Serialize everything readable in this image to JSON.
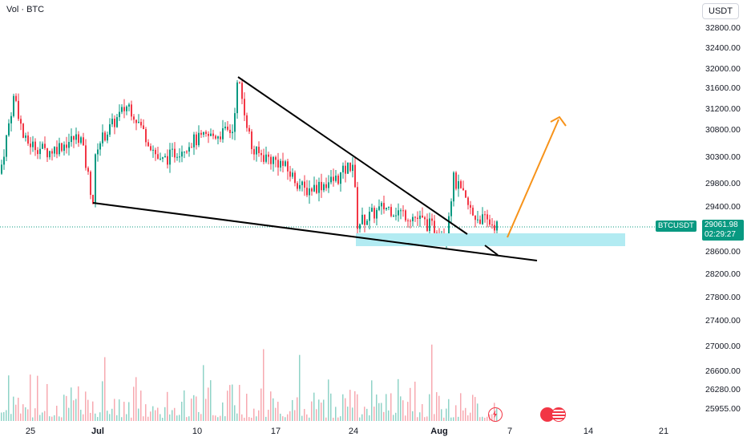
{
  "header": {
    "volume_label": "Vol · BTC"
  },
  "currency_button": "USDT",
  "price_axis": [
    "32800.00",
    "32400.00",
    "32000.00",
    "31600.00",
    "31200.00",
    "30800.00",
    "30300.00",
    "29800.00",
    "29400.00",
    "28600.00",
    "28200.00",
    "27800.00",
    "27400.00",
    "27000.00",
    "26600.00",
    "26280.00",
    "25955.00"
  ],
  "time_axis": [
    {
      "label": "25",
      "bold": false
    },
    {
      "label": "Jul",
      "bold": true
    },
    {
      "label": "10",
      "bold": false
    },
    {
      "label": "17",
      "bold": false
    },
    {
      "label": "24",
      "bold": false
    },
    {
      "label": "Aug",
      "bold": true
    },
    {
      "label": "7",
      "bold": false
    },
    {
      "label": "14",
      "bold": false
    },
    {
      "label": "21",
      "bold": false
    }
  ],
  "symbol_badge": "BTCUSDT",
  "last_price": "29061.98",
  "countdown": "02:29:27",
  "colors": {
    "up": "#089981",
    "down": "#f23645",
    "zone": "#b2ebf2",
    "arrow": "#f7931a",
    "trendline": "#000000"
  },
  "chart_data": {
    "type": "candlestick",
    "symbol": "BTCUSDT",
    "price_range": [
      25955,
      32800
    ],
    "last_price": 29061.98,
    "key_points": [
      {
        "date": "Jul 1",
        "price": 29500
      },
      {
        "date": "Jul 14",
        "price": 31800
      },
      {
        "date": "Jul 24",
        "price": 30300
      },
      {
        "date": "Aug 1",
        "price": 29800
      },
      {
        "date": "Aug 5",
        "price": 29060
      }
    ],
    "annotations": [
      {
        "type": "support-zone",
        "price_range": [
          28850,
          29020
        ]
      },
      {
        "type": "descending-trendline",
        "from": {
          "date": "Jul 14",
          "price": 31850
        },
        "to": {
          "date": "Aug 2",
          "price": 28990
        }
      },
      {
        "type": "support-trendline",
        "from": {
          "date": "Jul 1",
          "price": 29500
        },
        "to": {
          "date": "Aug 11",
          "price": 28550
        }
      },
      {
        "type": "projection-arrow",
        "from": {
          "date": "Aug 5",
          "price": 28950
        },
        "to": {
          "date": "Aug 11",
          "price": 30900
        }
      }
    ]
  }
}
